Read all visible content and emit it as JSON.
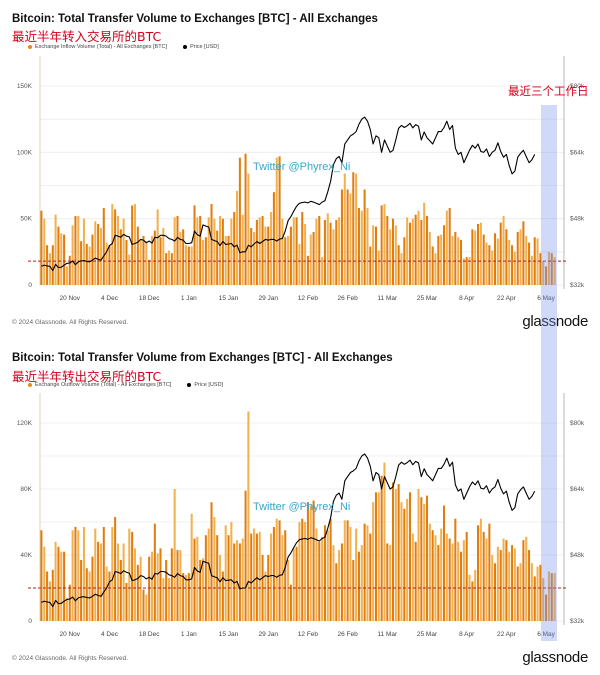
{
  "annotation": "最近三个工作日",
  "highlight_band": {
    "from": "5 May",
    "to": "8 May",
    "label": "最近三个工作日"
  },
  "charts": [
    {
      "title": "Bitcoin: Total Transfer Volume to Exchanges [BTC] - All Exchanges",
      "subtitle": "最近半年转入交易所的BTC",
      "legend": [
        {
          "label": "Exchange Inflow Volume (Total) - All Exchanges [BTC]",
          "color": "#e88a1a"
        },
        {
          "label": "Price [USD]",
          "color": "#000000"
        }
      ],
      "watermark": "Twitter @Phyrex_Ni",
      "copyright": "© 2024 Glassnode. All Rights Reserved.",
      "brand": "glassnode",
      "left_ticks": [
        "0",
        "50K",
        "100K",
        "150K"
      ],
      "right_ticks": [
        "$32k",
        "$48k",
        "$64k",
        "$80k"
      ]
    },
    {
      "title": "Bitcoin: Total Transfer Volume from Exchanges [BTC] - All Exchanges",
      "subtitle": "最近半年转出交易所的BTC",
      "legend": [
        {
          "label": "Exchange Outflow Volume (Total) - All Exchanges [BTC]",
          "color": "#e88a1a"
        },
        {
          "label": "Price [USD]",
          "color": "#000000"
        }
      ],
      "watermark": "Twitter @Phyrex_Ni",
      "copyright": "© 2024 Glassnode. All Rights Reserved.",
      "brand": "glassnode",
      "left_ticks": [
        "0",
        "40K",
        "80K",
        "120K"
      ],
      "right_ticks": [
        "$32k",
        "$48k",
        "$64k",
        "$80k"
      ]
    }
  ],
  "chart_data": [
    {
      "type": "bar",
      "title": "Bitcoin: Total Transfer Volume to Exchanges [BTC] - All Exchanges",
      "subtitle": "最近半年转入交易所的BTC",
      "xlabel": "",
      "ylabel": "Exchange Inflow Volume [BTC]",
      "y2label": "Price [USD]",
      "ylim": [
        0,
        160000
      ],
      "y2lim": [
        32000,
        80000
      ],
      "grid": true,
      "legend": "top-left",
      "x_ticks": [
        "20 Nov",
        "4 Dec",
        "18 Dec",
        "1 Jan",
        "15 Jan",
        "29 Jan",
        "12 Feb",
        "26 Feb",
        "11 Mar",
        "25 Mar",
        "8 Apr",
        "22 Apr",
        "6 May"
      ],
      "x_start": "2023-11-10",
      "x_end": "2024-05-08",
      "reference_line": {
        "value": 18000,
        "style": "dashed",
        "color": "#b22222"
      },
      "series": [
        {
          "name": "Exchange Inflow Volume (Total) - All Exchanges [BTC]",
          "kind": "bar",
          "color": "#e88a1a",
          "values": [
            56000,
            50000,
            30000,
            24000,
            30000,
            53000,
            44000,
            39000,
            38000,
            14000,
            22000,
            45000,
            52000,
            52000,
            33000,
            50000,
            31000,
            29000,
            38000,
            48000,
            46000,
            43000,
            58000,
            32000,
            30000,
            61000,
            57000,
            52000,
            42000,
            50000,
            34000,
            23000,
            60000,
            61000,
            44000,
            34000,
            37000,
            33000,
            19000,
            37000,
            41000,
            57000,
            36000,
            43000,
            24000,
            26000,
            24000,
            51000,
            52000,
            40000,
            42000,
            30000,
            29000,
            29000,
            60000,
            51000,
            52000,
            34000,
            36000,
            51000,
            61000,
            50000,
            41000,
            52000,
            50000,
            37000,
            37000,
            50000,
            55000,
            71000,
            96000,
            53000,
            99000,
            84000,
            43000,
            40000,
            49000,
            51000,
            52000,
            44000,
            44000,
            55000,
            70000,
            96000,
            97000,
            50000,
            36000,
            37000,
            44000,
            51000,
            51000,
            31000,
            55000,
            46000,
            22000,
            38000,
            40000,
            50000,
            52000,
            21000,
            49000,
            54000,
            47000,
            42000,
            49000,
            51000,
            72000,
            84000,
            72000,
            69000,
            85000,
            84000,
            58000,
            56000,
            72000,
            58000,
            29000,
            45000,
            44000,
            26000,
            60000,
            61000,
            52000,
            42000,
            50000,
            45000,
            30000,
            24000,
            36000,
            51000,
            47000,
            50000,
            53000,
            56000,
            49000,
            62000,
            52000,
            40000,
            29000,
            24000,
            37000,
            38000,
            45000,
            56000,
            58000,
            37000,
            40000,
            36000,
            34000,
            20000,
            21000,
            21000,
            42000,
            41000,
            46000,
            47000,
            38000,
            32000,
            30000,
            26000,
            39000,
            35000,
            47000,
            52000,
            42000,
            34000,
            30000,
            25000,
            40000,
            42000,
            48000,
            37000,
            32000,
            22000,
            36000,
            35000,
            24000,
            18000,
            14000,
            25000,
            24000,
            21000
          ]
        },
        {
          "name": "Price [USD]",
          "kind": "line",
          "color": "#000000",
          "axis": "right",
          "values": [
            36500,
            36800,
            36600,
            36500,
            35500,
            37000,
            36200,
            36300,
            36800,
            37200,
            37300,
            37800,
            36900,
            37600,
            37800,
            37900,
            37700,
            37600,
            38000,
            38500,
            38200,
            38000,
            39000,
            40000,
            41500,
            42000,
            44000,
            43800,
            43500,
            44200,
            43800,
            43600,
            41800,
            42000,
            42300,
            43000,
            42800,
            42200,
            42600,
            42100,
            43500,
            43400,
            44000,
            44000,
            43800,
            43200,
            43000,
            42600,
            43500,
            43000,
            42800,
            42000,
            42000,
            42200,
            45000,
            44100,
            43800,
            46500,
            46200,
            46000,
            43000,
            42700,
            42500,
            41500,
            42500,
            41800,
            41900,
            42000,
            41200,
            41600,
            39800,
            40000,
            40000,
            41600,
            41200,
            41900,
            42500,
            42000,
            42500,
            43000,
            42800,
            43000,
            43000,
            42600,
            43100,
            43200,
            45000,
            47500,
            48500,
            49800,
            51000,
            51700,
            51900,
            52000,
            51800,
            52200,
            52000,
            51700,
            51400,
            52000,
            52300,
            54500,
            57000,
            61000,
            62500,
            63000,
            61500,
            66000,
            67000,
            68000,
            68400,
            69000,
            70800,
            72000,
            72500,
            71500,
            69500,
            66000,
            68000,
            67500,
            64000,
            67000,
            65500,
            64000,
            64500,
            67000,
            69800,
            70500,
            70000,
            70400,
            71000,
            69900,
            70700,
            70300,
            67000,
            68900,
            67500,
            66800,
            66000,
            67500,
            69000,
            69000,
            70000,
            71500,
            69500,
            70500,
            65000,
            63500,
            64000,
            61500,
            63000,
            64500,
            65700,
            65000,
            66000,
            64200,
            64000,
            64800,
            63000,
            64000,
            64500,
            66300,
            64200,
            62800,
            63500,
            60800,
            58800,
            59500,
            62800,
            63800,
            64500,
            63000,
            61500,
            62200,
            63500
          ]
        }
      ]
    },
    {
      "type": "bar",
      "title": "Bitcoin: Total Transfer Volume from Exchanges [BTC] - All Exchanges",
      "subtitle": "最近半年转出交易所的BTC",
      "xlabel": "",
      "ylabel": "Exchange Outflow Volume [BTC]",
      "y2label": "Price [USD]",
      "ylim": [
        0,
        130000
      ],
      "y2lim": [
        32000,
        80000
      ],
      "grid": true,
      "legend": "top-left",
      "x_ticks": [
        "20 Nov",
        "4 Dec",
        "18 Dec",
        "1 Jan",
        "15 Jan",
        "29 Jan",
        "12 Feb",
        "26 Feb",
        "11 Mar",
        "25 Mar",
        "8 Apr",
        "22 Apr",
        "6 May"
      ],
      "x_start": "2023-11-10",
      "x_end": "2024-05-08",
      "reference_line": {
        "value": 20000,
        "style": "dashed",
        "color": "#b22222"
      },
      "series": [
        {
          "name": "Exchange Outflow Volume (Total) - All Exchanges [BTC]",
          "kind": "bar",
          "color": "#e88a1a",
          "values": [
            55000,
            45000,
            30000,
            24000,
            31000,
            48000,
            45000,
            42000,
            42000,
            14000,
            22000,
            55000,
            57000,
            55000,
            37000,
            57000,
            32000,
            30000,
            39000,
            56000,
            48000,
            47000,
            57000,
            33000,
            30000,
            57000,
            63000,
            47000,
            37000,
            47000,
            23000,
            56000,
            54000,
            44000,
            34000,
            39000,
            19000,
            16000,
            39000,
            42000,
            59000,
            41000,
            44000,
            26000,
            37000,
            26000,
            44000,
            80000,
            43000,
            43000,
            29000,
            28000,
            29000,
            65000,
            50000,
            51000,
            37000,
            38000,
            52000,
            56000,
            72000,
            63000,
            52000,
            40000,
            30000,
            58000,
            52000,
            60000,
            47000,
            49000,
            47000,
            50000,
            79000,
            127000,
            53000,
            56000,
            53000,
            54000,
            40000,
            30000,
            40000,
            53000,
            57000,
            62000,
            61000,
            52000,
            55000,
            37000,
            22000,
            44000,
            45000,
            60000,
            62000,
            60000,
            72000,
            70000,
            73000,
            56000,
            48000,
            51000,
            58000,
            55000,
            62000,
            46000,
            35000,
            43000,
            47000,
            61000,
            61000,
            57000,
            37000,
            56000,
            42000,
            46000,
            59000,
            58000,
            53000,
            72000,
            78000,
            78000,
            88000,
            96000,
            47000,
            46000,
            84000,
            80000,
            83000,
            72000,
            68000,
            74000,
            78000,
            53000,
            48000,
            80000,
            75000,
            71000,
            76000,
            59000,
            55000,
            52000,
            46000,
            56000,
            70000,
            53000,
            50000,
            47000,
            62000,
            48000,
            42000,
            49000,
            54000,
            28000,
            24000,
            31000,
            58000,
            62000,
            54000,
            50000,
            59000,
            40000,
            35000,
            45000,
            43000,
            50000,
            49000,
            42000,
            46000,
            44000,
            33000,
            35000,
            49000,
            51000,
            43000,
            35000,
            27000,
            33000,
            34000,
            26000,
            16000,
            30000,
            29000,
            29000
          ]
        },
        {
          "name": "Price [USD]",
          "kind": "line",
          "color": "#000000",
          "axis": "right",
          "values": [
            36500,
            36800,
            36600,
            36500,
            35500,
            37000,
            36200,
            36300,
            36800,
            37200,
            37300,
            37800,
            36900,
            37600,
            37800,
            37900,
            37700,
            37600,
            38000,
            38500,
            38200,
            38000,
            39000,
            40000,
            41500,
            42000,
            44000,
            43800,
            43500,
            44200,
            43800,
            43600,
            41800,
            42000,
            42300,
            43000,
            42800,
            42200,
            42600,
            42100,
            43500,
            43400,
            44000,
            44000,
            43800,
            43200,
            43000,
            42600,
            43500,
            43000,
            42800,
            42000,
            42000,
            42200,
            45000,
            44100,
            43800,
            46500,
            46200,
            46000,
            43000,
            42700,
            42500,
            41500,
            42500,
            41800,
            41900,
            42000,
            41200,
            41600,
            39800,
            40000,
            40000,
            41600,
            41200,
            41900,
            42500,
            42000,
            42500,
            43000,
            42800,
            43000,
            43000,
            42600,
            43100,
            43200,
            45000,
            47500,
            48500,
            49800,
            51000,
            51700,
            51900,
            52000,
            51800,
            52200,
            52000,
            51700,
            51400,
            52000,
            52300,
            54500,
            57000,
            61000,
            62500,
            63000,
            61500,
            66000,
            67000,
            68000,
            68400,
            69000,
            70800,
            72000,
            72500,
            71500,
            69500,
            66000,
            68000,
            67500,
            64000,
            67000,
            65500,
            64000,
            64500,
            67000,
            69800,
            70500,
            70000,
            70400,
            71000,
            69900,
            70700,
            70300,
            67000,
            68900,
            67500,
            66800,
            66000,
            67500,
            69000,
            69000,
            70000,
            71500,
            69500,
            70500,
            65000,
            63500,
            64000,
            61500,
            63000,
            64500,
            65700,
            65000,
            66000,
            64200,
            64000,
            64800,
            63000,
            64000,
            64500,
            66300,
            64200,
            62800,
            63500,
            60800,
            58800,
            59500,
            62800,
            63800,
            64500,
            63000,
            61500,
            62200,
            63500
          ]
        }
      ]
    }
  ]
}
